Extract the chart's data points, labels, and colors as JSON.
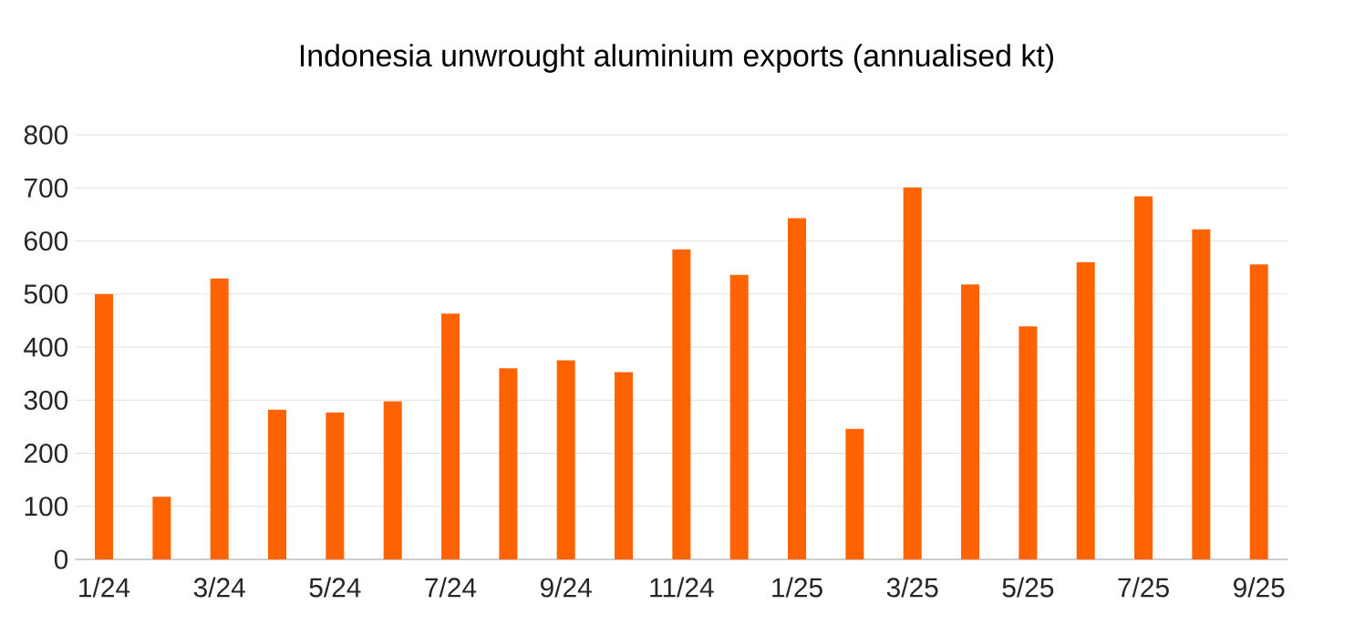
{
  "chart_data": {
    "type": "bar",
    "title": "Indonesia unwrought aluminium exports (annualised kt)",
    "categories": [
      "1/24",
      null,
      "3/24",
      null,
      "5/24",
      null,
      "7/24",
      null,
      "9/24",
      null,
      "11/24",
      null,
      "1/25",
      null,
      "3/25",
      null,
      "5/25",
      null,
      "7/25",
      null,
      "9/25"
    ],
    "values": [
      500,
      118,
      529,
      282,
      277,
      298,
      463,
      360,
      375,
      353,
      584,
      536,
      643,
      246,
      701,
      518,
      439,
      560,
      684,
      622,
      556
    ],
    "color": "#ff6200",
    "ylim": [
      0,
      800
    ],
    "yticks": [
      0,
      100,
      200,
      300,
      400,
      500,
      600,
      700,
      800
    ],
    "grid": "y"
  }
}
